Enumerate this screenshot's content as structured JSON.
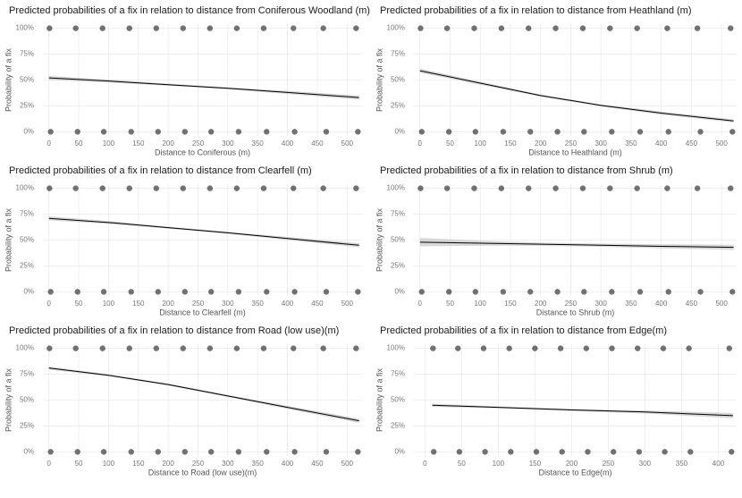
{
  "chart_data": [
    {
      "type": "line",
      "title": "Predicted probabilities of a fix in relation to distance from Coniferous Woodland (m)",
      "x_label": "Distance to Coniferous (m)",
      "y_label": "Probability of a fix",
      "xlim": [
        -10,
        525
      ],
      "ylim": [
        -4,
        104
      ],
      "xticks": [
        0,
        50,
        100,
        150,
        200,
        250,
        300,
        350,
        400,
        450,
        500
      ],
      "yticks": [
        {
          "value": 0,
          "label": "0%"
        },
        {
          "value": 25,
          "label": "25%"
        },
        {
          "value": 50,
          "label": "50%"
        },
        {
          "value": 75,
          "label": "75%"
        },
        {
          "value": 100,
          "label": "100%"
        }
      ],
      "grid": true,
      "band_color": "#c8c8c8",
      "line": {
        "color": "#000000",
        "x": [
          0,
          100,
          200,
          300,
          400,
          520
        ],
        "values": [
          52,
          49,
          45.5,
          42,
          38,
          33
        ],
        "lower": [
          50,
          47.5,
          44.5,
          41,
          36.5,
          31
        ],
        "upper": [
          54,
          50.5,
          46.5,
          43,
          39.5,
          35
        ]
      },
      "points": {
        "color": "#000000",
        "x": [
          1,
          45,
          90,
          135,
          180,
          225,
          270,
          315,
          360,
          410,
          460,
          515,
          3,
          48,
          92,
          138,
          183,
          228,
          272,
          318,
          365,
          412,
          465,
          518
        ],
        "y": [
          100,
          100,
          100,
          100,
          100,
          100,
          100,
          100,
          100,
          100,
          100,
          100,
          0,
          0,
          0,
          0,
          0,
          0,
          0,
          0,
          0,
          0,
          0,
          0
        ]
      }
    },
    {
      "type": "line",
      "title": "Predicted probabilities of a fix in relation to distance from Heathland (m)",
      "x_label": "Distance to Heathland (m)",
      "y_label": "Probability of a fix",
      "xlim": [
        -10,
        525
      ],
      "ylim": [
        -4,
        104
      ],
      "xticks": [
        0,
        50,
        100,
        150,
        200,
        250,
        300,
        350,
        400,
        450,
        500
      ],
      "yticks": [
        {
          "value": 0,
          "label": "0%"
        },
        {
          "value": 25,
          "label": "25%"
        },
        {
          "value": 50,
          "label": "50%"
        },
        {
          "value": 75,
          "label": "75%"
        },
        {
          "value": 100,
          "label": "100%"
        }
      ],
      "grid": true,
      "band_color": "#c8c8c8",
      "line": {
        "color": "#000000",
        "x": [
          0,
          100,
          200,
          300,
          400,
          520
        ],
        "values": [
          59,
          47,
          35,
          25.5,
          18,
          10.5
        ],
        "lower": [
          57,
          45.5,
          34,
          24.5,
          16.5,
          9
        ],
        "upper": [
          61,
          48.5,
          36,
          26.5,
          19.5,
          12
        ]
      },
      "points": {
        "color": "#000000",
        "x": [
          1,
          45,
          90,
          135,
          180,
          225,
          270,
          315,
          360,
          410,
          460,
          515,
          3,
          48,
          92,
          138,
          183,
          228,
          272,
          318,
          365,
          412,
          465,
          518
        ],
        "y": [
          100,
          100,
          100,
          100,
          100,
          100,
          100,
          100,
          100,
          100,
          100,
          100,
          0,
          0,
          0,
          0,
          0,
          0,
          0,
          0,
          0,
          0,
          0,
          0
        ]
      }
    },
    {
      "type": "line",
      "title": "Predicted probabilities of a fix in relation to distance from Clearfell (m)",
      "x_label": "Distance to Clearfell (m)",
      "y_label": "Probability of a fix",
      "xlim": [
        -10,
        525
      ],
      "ylim": [
        -4,
        104
      ],
      "xticks": [
        0,
        50,
        100,
        150,
        200,
        250,
        300,
        350,
        400,
        450,
        500
      ],
      "yticks": [
        {
          "value": 0,
          "label": "0%"
        },
        {
          "value": 25,
          "label": "25%"
        },
        {
          "value": 50,
          "label": "50%"
        },
        {
          "value": 75,
          "label": "75%"
        },
        {
          "value": 100,
          "label": "100%"
        }
      ],
      "grid": true,
      "band_color": "#c8c8c8",
      "line": {
        "color": "#000000",
        "x": [
          0,
          100,
          200,
          300,
          400,
          520
        ],
        "values": [
          71,
          67,
          62,
          57,
          51.5,
          45
        ],
        "lower": [
          69,
          65.5,
          61,
          56,
          50,
          43
        ],
        "upper": [
          73,
          68.5,
          63,
          58,
          53,
          47
        ]
      },
      "points": {
        "color": "#000000",
        "x": [
          1,
          45,
          90,
          135,
          180,
          225,
          270,
          315,
          360,
          410,
          460,
          515,
          3,
          48,
          92,
          138,
          183,
          228,
          272,
          318,
          365,
          412,
          465,
          518
        ],
        "y": [
          100,
          100,
          100,
          100,
          100,
          100,
          100,
          100,
          100,
          100,
          100,
          100,
          0,
          0,
          0,
          0,
          0,
          0,
          0,
          0,
          0,
          0,
          0,
          0
        ]
      }
    },
    {
      "type": "line",
      "title": "Predicted probabilities of a fix in relation to distance from Shrub (m)",
      "x_label": "Distance to Shrub (m)",
      "y_label": "Probability of a fix",
      "xlim": [
        -10,
        525
      ],
      "ylim": [
        -4,
        104
      ],
      "xticks": [
        0,
        50,
        100,
        150,
        200,
        250,
        300,
        350,
        400,
        450,
        500
      ],
      "yticks": [
        {
          "value": 0,
          "label": "0%"
        },
        {
          "value": 25,
          "label": "25%"
        },
        {
          "value": 50,
          "label": "50%"
        },
        {
          "value": 75,
          "label": "75%"
        },
        {
          "value": 100,
          "label": "100%"
        }
      ],
      "grid": true,
      "band_color": "#c8c8c8",
      "line": {
        "color": "#000000",
        "x": [
          0,
          100,
          200,
          300,
          400,
          520
        ],
        "values": [
          48,
          47,
          46,
          45,
          44,
          43
        ],
        "lower": [
          44,
          44.5,
          44.5,
          43.5,
          42,
          40.5
        ],
        "upper": [
          52,
          49.5,
          47.5,
          46.5,
          46,
          45.5
        ]
      },
      "points": {
        "color": "#000000",
        "x": [
          1,
          45,
          90,
          135,
          180,
          225,
          270,
          315,
          360,
          410,
          460,
          515,
          3,
          48,
          92,
          138,
          183,
          228,
          272,
          318,
          365,
          412,
          465,
          518
        ],
        "y": [
          100,
          100,
          100,
          100,
          100,
          100,
          100,
          100,
          100,
          100,
          100,
          100,
          0,
          0,
          0,
          0,
          0,
          0,
          0,
          0,
          0,
          0,
          0,
          0
        ]
      }
    },
    {
      "type": "line",
      "title": "Predicted probabilities of a fix in relation to distance from Road (low use)(m)",
      "x_label": "Distance to Road (low use)(m)",
      "y_label": "Probability of a fix",
      "xlim": [
        -10,
        525
      ],
      "ylim": [
        -4,
        104
      ],
      "xticks": [
        0,
        50,
        100,
        150,
        200,
        250,
        300,
        350,
        400,
        450,
        500
      ],
      "yticks": [
        {
          "value": 0,
          "label": "0%"
        },
        {
          "value": 25,
          "label": "25%"
        },
        {
          "value": 50,
          "label": "50%"
        },
        {
          "value": 75,
          "label": "75%"
        },
        {
          "value": 100,
          "label": "100%"
        }
      ],
      "grid": true,
      "band_color": "#c8c8c8",
      "line": {
        "color": "#000000",
        "x": [
          0,
          100,
          200,
          300,
          400,
          520
        ],
        "values": [
          81,
          74,
          65,
          54,
          43,
          30
        ],
        "lower": [
          79.5,
          73,
          64,
          53,
          41.5,
          28
        ],
        "upper": [
          82.5,
          75,
          66,
          55,
          44.5,
          32
        ]
      },
      "points": {
        "color": "#000000",
        "x": [
          1,
          45,
          90,
          135,
          180,
          225,
          270,
          315,
          360,
          410,
          460,
          515,
          3,
          48,
          92,
          138,
          183,
          228,
          272,
          318,
          365,
          412,
          465,
          518
        ],
        "y": [
          100,
          100,
          100,
          100,
          100,
          100,
          100,
          100,
          100,
          100,
          100,
          100,
          0,
          0,
          0,
          0,
          0,
          0,
          0,
          0,
          0,
          0,
          0,
          0
        ]
      }
    },
    {
      "type": "line",
      "title": "Predicted probabilities of a fix in relation to distance from Edge(m)",
      "x_label": "Distance to Edge(m)",
      "y_label": "Probability of a fix",
      "xlim": [
        -15,
        425
      ],
      "ylim": [
        -4,
        104
      ],
      "xticks": [
        0,
        50,
        100,
        150,
        200,
        250,
        300,
        350,
        400
      ],
      "yticks": [
        {
          "value": 0,
          "label": "0%"
        },
        {
          "value": 25,
          "label": "25%"
        },
        {
          "value": 50,
          "label": "50%"
        },
        {
          "value": 75,
          "label": "75%"
        },
        {
          "value": 100,
          "label": "100%"
        }
      ],
      "grid": true,
      "band_color": "#c8c8c8",
      "line": {
        "color": "#000000",
        "x": [
          10,
          100,
          200,
          300,
          420
        ],
        "values": [
          45,
          43,
          40.5,
          38.5,
          35
        ],
        "lower": [
          43.5,
          42,
          39.5,
          37,
          32.5
        ],
        "upper": [
          46.5,
          44,
          41.5,
          40,
          37.5
        ]
      },
      "points": {
        "color": "#000000",
        "x": [
          11,
          45,
          80,
          115,
          150,
          185,
          220,
          255,
          290,
          325,
          360,
          415,
          12,
          47,
          82,
          117,
          152,
          187,
          222,
          257,
          292,
          327,
          362,
          418
        ],
        "y": [
          100,
          100,
          100,
          100,
          100,
          100,
          100,
          100,
          100,
          100,
          100,
          100,
          0,
          0,
          0,
          0,
          0,
          0,
          0,
          0,
          0,
          0,
          0,
          0
        ]
      }
    }
  ]
}
